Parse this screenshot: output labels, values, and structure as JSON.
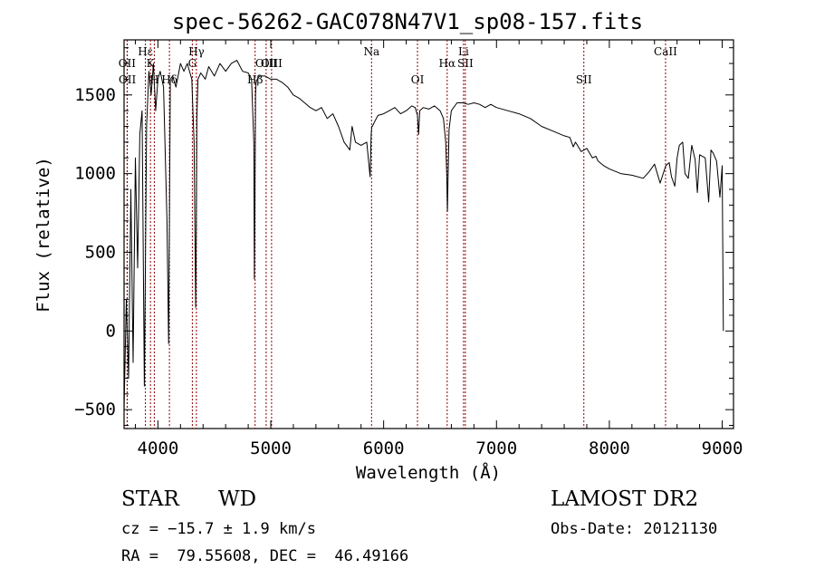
{
  "chart_data": {
    "type": "line",
    "title": "spec-56262-GAC078N47V1_sp08-157.fits",
    "xlabel": "Wavelength (Å)",
    "ylabel": "Flux (relative)",
    "xlim": [
      3700,
      9100
    ],
    "ylim": [
      -620,
      1850
    ],
    "xticks": [
      4000,
      5000,
      6000,
      7000,
      8000,
      9000
    ],
    "yticks": [
      -500,
      0,
      500,
      1000,
      1500
    ],
    "xtick_labels": [
      "4000",
      "5000",
      "6000",
      "7000",
      "8000",
      "9000"
    ],
    "ytick_labels": [
      "−500",
      "0",
      "500",
      "1000",
      "1500"
    ],
    "grid": false,
    "line_color": "#000000",
    "marker_color": "#8b0000",
    "series": [
      {
        "x": [
          3700,
          3720,
          3740,
          3760,
          3780,
          3800,
          3820,
          3840,
          3860,
          3880,
          3900,
          3920,
          3940,
          3960,
          3980,
          4000,
          4020,
          4050,
          4080,
          4095,
          4102,
          4110,
          4130,
          4160,
          4200,
          4230,
          4260,
          4300,
          4320,
          4335,
          4340,
          4345,
          4355,
          4380,
          4420,
          4450,
          4500,
          4550,
          4600,
          4650,
          4700,
          4750,
          4800,
          4830,
          4850,
          4855,
          4860,
          4865,
          4870,
          4880,
          4900,
          4950,
          5000,
          5050,
          5100,
          5150,
          5200,
          5250,
          5300,
          5350,
          5400,
          5450,
          5500,
          5550,
          5600,
          5650,
          5700,
          5720,
          5750,
          5800,
          5850,
          5880,
          5890,
          5895,
          5900,
          5920,
          5950,
          6000,
          6050,
          6100,
          6150,
          6200,
          6250,
          6280,
          6300,
          6310,
          6320,
          6350,
          6400,
          6450,
          6500,
          6530,
          6550,
          6560,
          6565,
          6570,
          6580,
          6600,
          6650,
          6700,
          6750,
          6800,
          6850,
          6900,
          6950,
          7000,
          7100,
          7200,
          7300,
          7400,
          7500,
          7600,
          7650,
          7680,
          7700,
          7750,
          7800,
          7850,
          7880,
          7900,
          7950,
          8000,
          8100,
          8200,
          8300,
          8350,
          8400,
          8450,
          8500,
          8530,
          8550,
          8580,
          8600,
          8620,
          8650,
          8670,
          8700,
          8730,
          8760,
          8780,
          8800,
          8850,
          8880,
          8900,
          8920,
          8950,
          8980,
          9000,
          9010
        ],
        "y": [
          -500,
          200,
          -300,
          900,
          -200,
          1100,
          400,
          1250,
          1400,
          -350,
          1300,
          1650,
          1500,
          1700,
          1400,
          1600,
          1650,
          1550,
          700,
          -80,
          700,
          1600,
          1620,
          1550,
          1700,
          1650,
          1700,
          1600,
          1200,
          150,
          650,
          1350,
          1600,
          1640,
          1600,
          1680,
          1620,
          1700,
          1650,
          1700,
          1720,
          1650,
          1640,
          1600,
          1200,
          330,
          900,
          1500,
          1580,
          1600,
          1620,
          1620,
          1600,
          1600,
          1580,
          1550,
          1500,
          1480,
          1450,
          1420,
          1400,
          1420,
          1350,
          1380,
          1300,
          1200,
          1150,
          1300,
          1200,
          1180,
          1200,
          980,
          1250,
          1300,
          1300,
          1330,
          1370,
          1380,
          1400,
          1420,
          1380,
          1400,
          1430,
          1420,
          1370,
          1250,
          1400,
          1420,
          1410,
          1430,
          1400,
          1350,
          1200,
          980,
          760,
          950,
          1280,
          1400,
          1450,
          1450,
          1440,
          1450,
          1440,
          1420,
          1440,
          1420,
          1400,
          1380,
          1350,
          1300,
          1270,
          1240,
          1230,
          1170,
          1200,
          1140,
          1160,
          1100,
          1110,
          1080,
          1050,
          1030,
          1000,
          990,
          970,
          1010,
          1060,
          940,
          1050,
          1070,
          980,
          920,
          1100,
          1180,
          1200,
          1000,
          970,
          1180,
          1090,
          880,
          1120,
          1100,
          820,
          1150,
          1130,
          1080,
          850,
          1050,
          0
        ]
      }
    ],
    "lines": {
      "positions": [
        3727,
        3729,
        3889,
        3934,
        3968,
        4102,
        4305,
        4341,
        4861,
        4959,
        5007,
        5893,
        6300,
        6563,
        6708,
        6724,
        7774,
        8498
      ],
      "labels": [
        "OII",
        "OII",
        "Hε",
        "K",
        "H",
        "Hδ",
        "G",
        "Hγ",
        "Hβ",
        "OIII",
        "OIII",
        "Na",
        "OI",
        "Hα",
        "Li",
        "SII",
        "SII",
        "CaII"
      ]
    }
  },
  "info": {
    "class": "STAR",
    "subclass": "WD",
    "survey": "LAMOST DR2",
    "cz": "cz = −15.7 ± 1.9 km/s",
    "obsdate": "Obs-Date: 20121130",
    "radec": "RA =  79.55608, DEC =  46.49166"
  }
}
